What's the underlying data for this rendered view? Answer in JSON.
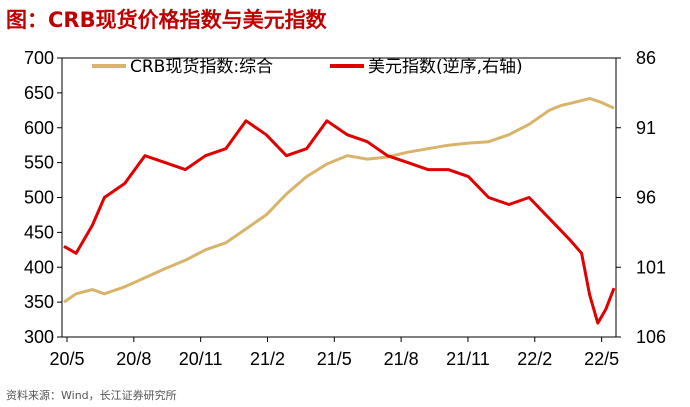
{
  "header": {
    "title": "图：CRB现货价格指数与美元指数"
  },
  "footer": {
    "source": "资料来源：Wind，长江证券研究所"
  },
  "colors": {
    "crb": "#d9b36a",
    "usd": "#e00000",
    "axis": "#000000",
    "title": "#c00000"
  },
  "chart_data": {
    "type": "line",
    "title": "CRB现货价格指数与美元指数",
    "x": [
      "20/5",
      "20/8",
      "20/11",
      "21/2",
      "21/5",
      "21/8",
      "21/11",
      "22/2",
      "22/5"
    ],
    "left_axis": {
      "ylim": [
        300,
        700
      ],
      "ticks": [
        300,
        350,
        400,
        450,
        500,
        550,
        600,
        650,
        700
      ]
    },
    "right_axis": {
      "ylim": [
        106,
        86
      ],
      "inverted": true,
      "ticks": [
        86,
        91,
        96,
        101,
        106
      ]
    },
    "grid": false,
    "legend_position": "top",
    "series": [
      {
        "name": "CRB现货指数:综合",
        "axis": "left",
        "points": [
          [
            0,
            350
          ],
          [
            0.3,
            362
          ],
          [
            0.7,
            368
          ],
          [
            1.0,
            362
          ],
          [
            1.5,
            372
          ],
          [
            2.0,
            385
          ],
          [
            2.5,
            398
          ],
          [
            3.0,
            410
          ],
          [
            3.5,
            425
          ],
          [
            4.0,
            435
          ],
          [
            4.5,
            455
          ],
          [
            5.0,
            475
          ],
          [
            5.5,
            505
          ],
          [
            6.0,
            530
          ],
          [
            6.5,
            548
          ],
          [
            7.0,
            560
          ],
          [
            7.5,
            555
          ],
          [
            8.0,
            558
          ],
          [
            8.5,
            565
          ],
          [
            9.0,
            570
          ],
          [
            9.5,
            575
          ],
          [
            10.0,
            578
          ],
          [
            10.5,
            580
          ],
          [
            11.0,
            590
          ],
          [
            11.5,
            605
          ],
          [
            12.0,
            625
          ],
          [
            12.3,
            632
          ],
          [
            12.6,
            636
          ],
          [
            13.0,
            642
          ],
          [
            13.3,
            636
          ],
          [
            13.6,
            628
          ]
        ]
      },
      {
        "name": "美元指数(逆序,右轴)",
        "axis": "right",
        "points": [
          [
            0,
            99.5
          ],
          [
            0.3,
            100
          ],
          [
            0.7,
            98
          ],
          [
            1.0,
            96
          ],
          [
            1.5,
            95
          ],
          [
            2.0,
            93
          ],
          [
            2.5,
            93.5
          ],
          [
            3.0,
            94
          ],
          [
            3.5,
            93
          ],
          [
            4.0,
            92.5
          ],
          [
            4.5,
            90.5
          ],
          [
            5.0,
            91.5
          ],
          [
            5.5,
            93
          ],
          [
            6.0,
            92.5
          ],
          [
            6.5,
            90.5
          ],
          [
            7.0,
            91.5
          ],
          [
            7.5,
            92
          ],
          [
            8.0,
            93
          ],
          [
            8.5,
            93.5
          ],
          [
            9.0,
            94
          ],
          [
            9.5,
            94
          ],
          [
            10.0,
            94.5
          ],
          [
            10.5,
            96
          ],
          [
            11.0,
            96.5
          ],
          [
            11.5,
            96
          ],
          [
            12.0,
            97.5
          ],
          [
            12.5,
            99
          ],
          [
            12.8,
            100
          ],
          [
            13.0,
            103
          ],
          [
            13.2,
            105
          ],
          [
            13.4,
            104
          ],
          [
            13.6,
            102.5
          ]
        ]
      }
    ]
  }
}
